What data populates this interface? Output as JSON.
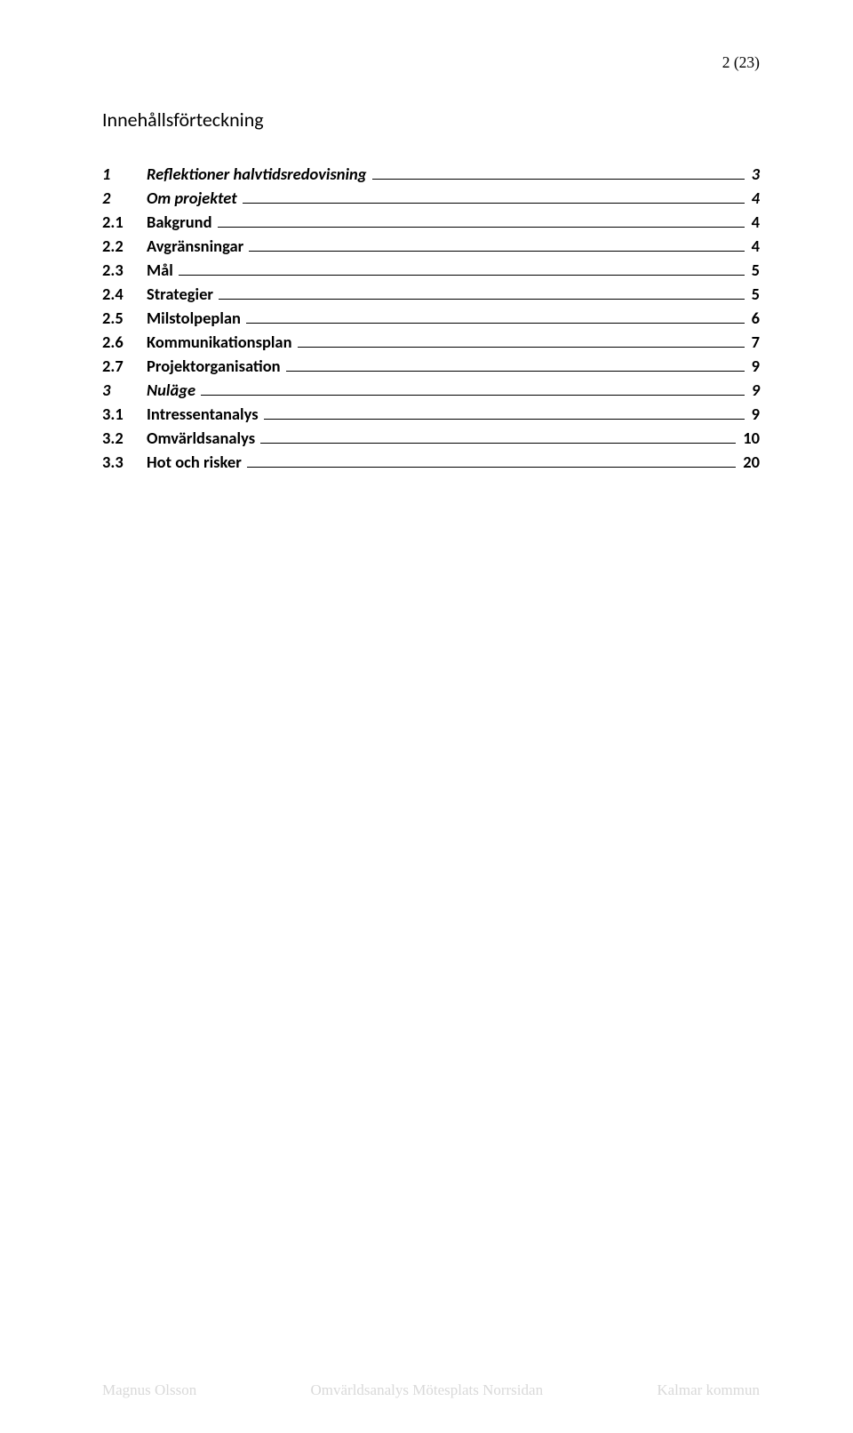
{
  "header": {
    "page_label": "2 (23)"
  },
  "toc": {
    "title": "Innehållsförteckning",
    "items": [
      {
        "level": 1,
        "num": "1",
        "label": "Reflektioner halvtidsredovisning",
        "page": "3"
      },
      {
        "level": 1,
        "num": "2",
        "label": "Om projektet",
        "page": "4"
      },
      {
        "level": 2,
        "num": "2.1",
        "label": "Bakgrund",
        "page": "4"
      },
      {
        "level": 2,
        "num": "2.2",
        "label": "Avgränsningar",
        "page": "4"
      },
      {
        "level": 2,
        "num": "2.3",
        "label": "Mål",
        "page": "5"
      },
      {
        "level": 2,
        "num": "2.4",
        "label": "Strategier",
        "page": "5"
      },
      {
        "level": 2,
        "num": "2.5",
        "label": "Milstolpeplan",
        "page": "6"
      },
      {
        "level": 2,
        "num": "2.6",
        "label": "Kommunikationsplan",
        "page": "7"
      },
      {
        "level": 2,
        "num": "2.7",
        "label": "Projektorganisation",
        "page": "9"
      },
      {
        "level": 1,
        "num": "3",
        "label": "Nuläge",
        "page": "9"
      },
      {
        "level": 2,
        "num": "3.1",
        "label": "Intressentanalys",
        "page": "9"
      },
      {
        "level": 2,
        "num": "3.2",
        "label": "Omvärldsanalys",
        "page": "10"
      },
      {
        "level": 2,
        "num": "3.3",
        "label": "Hot och risker",
        "page": "20"
      }
    ]
  },
  "footer": {
    "left": "Magnus Olsson",
    "center": "Omvärldsanalys Mötesplats Norrsidan",
    "right": "Kalmar kommun"
  },
  "style": {
    "font_color": "#000000",
    "footer_color": "#d9d9d9",
    "background": "#ffffff"
  }
}
